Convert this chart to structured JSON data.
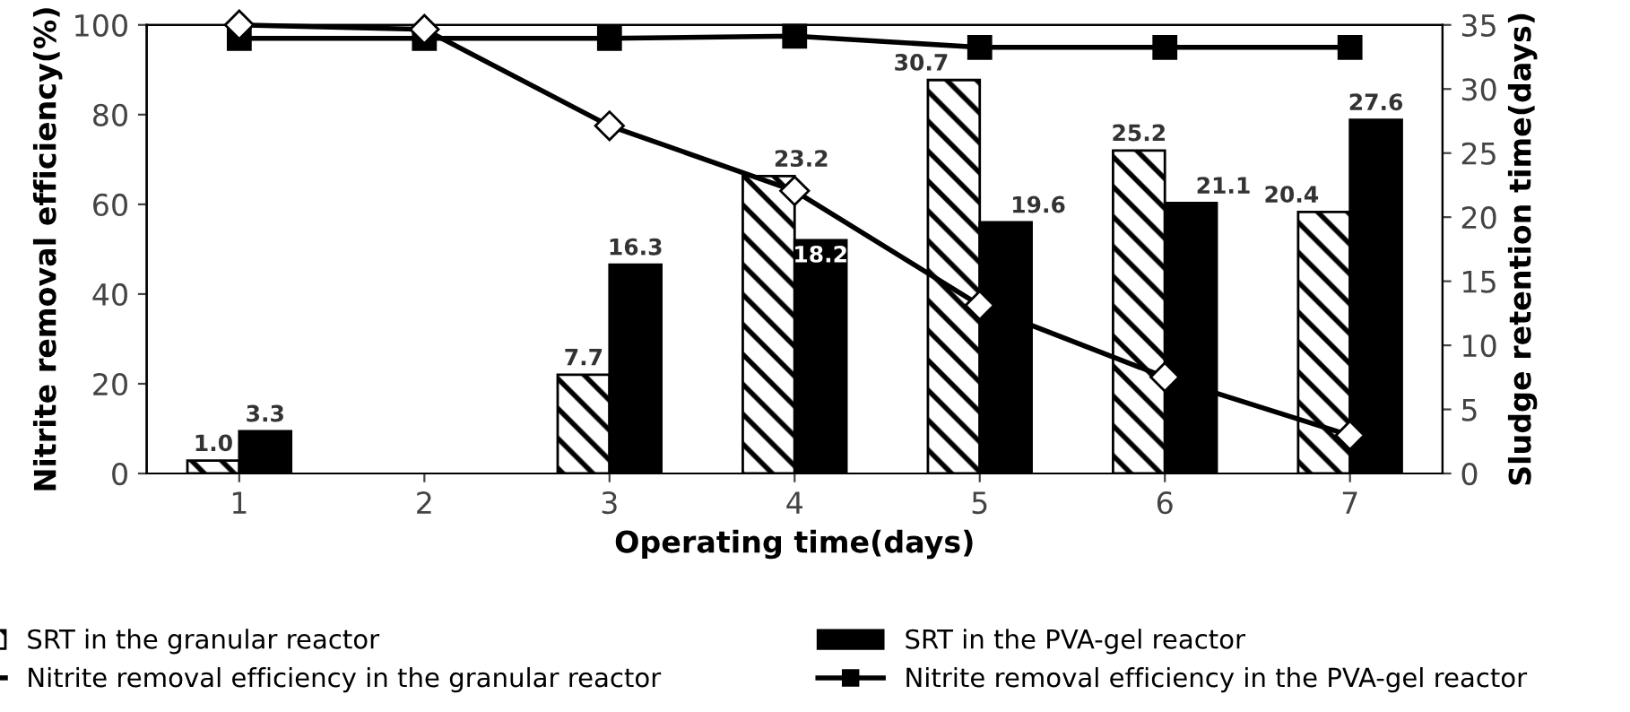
{
  "chart_data": {
    "type": "bar",
    "xlabel": "Operating time(days)",
    "ylabel": "Nitrite removal efficiency(%)",
    "y2label": "Sludge retention time(days)",
    "categories": [
      "1",
      "2",
      "3",
      "4",
      "5",
      "6",
      "7"
    ],
    "series": [
      {
        "name": "SRT in the granular reactor",
        "axis": "y2",
        "color": "#000000",
        "values": [
          1.0,
          null,
          7.7,
          23.2,
          30.7,
          25.2,
          20.4
        ],
        "value_labels": [
          "1.0",
          null,
          "7.7",
          "23.2",
          "30.7",
          "25.2",
          "20.4"
        ]
      },
      {
        "name": "SRT in the PVA-gel reactor",
        "axis": "y2",
        "color": "#000000",
        "values": [
          3.3,
          null,
          16.3,
          18.2,
          19.6,
          21.1,
          27.6
        ],
        "value_labels": [
          "3.3",
          null,
          "16.3",
          "18.2",
          "19.6",
          "21.1",
          "27.6"
        ]
      },
      {
        "name": "Nitrite removal efficiency in the granular reactor",
        "type": "line",
        "axis": "y",
        "color": "#000000",
        "marker": "diamond",
        "values": [
          100,
          99,
          77.5,
          63,
          37.5,
          21.5,
          8.5
        ]
      },
      {
        "name": "Nitrite removal efficiency in the PVA-gel reactor",
        "type": "line",
        "axis": "y",
        "color": "#000000",
        "marker": "square",
        "values": [
          97,
          97,
          97,
          97.5,
          95,
          95,
          95
        ]
      }
    ],
    "ylim": [
      0,
      100
    ],
    "yticks": [
      0,
      20,
      40,
      60,
      80,
      100
    ],
    "y2lim": [
      0,
      35
    ],
    "y2ticks": [
      0,
      5,
      10,
      15,
      20,
      25,
      30,
      35
    ],
    "grid": false,
    "legend": "bottom"
  }
}
